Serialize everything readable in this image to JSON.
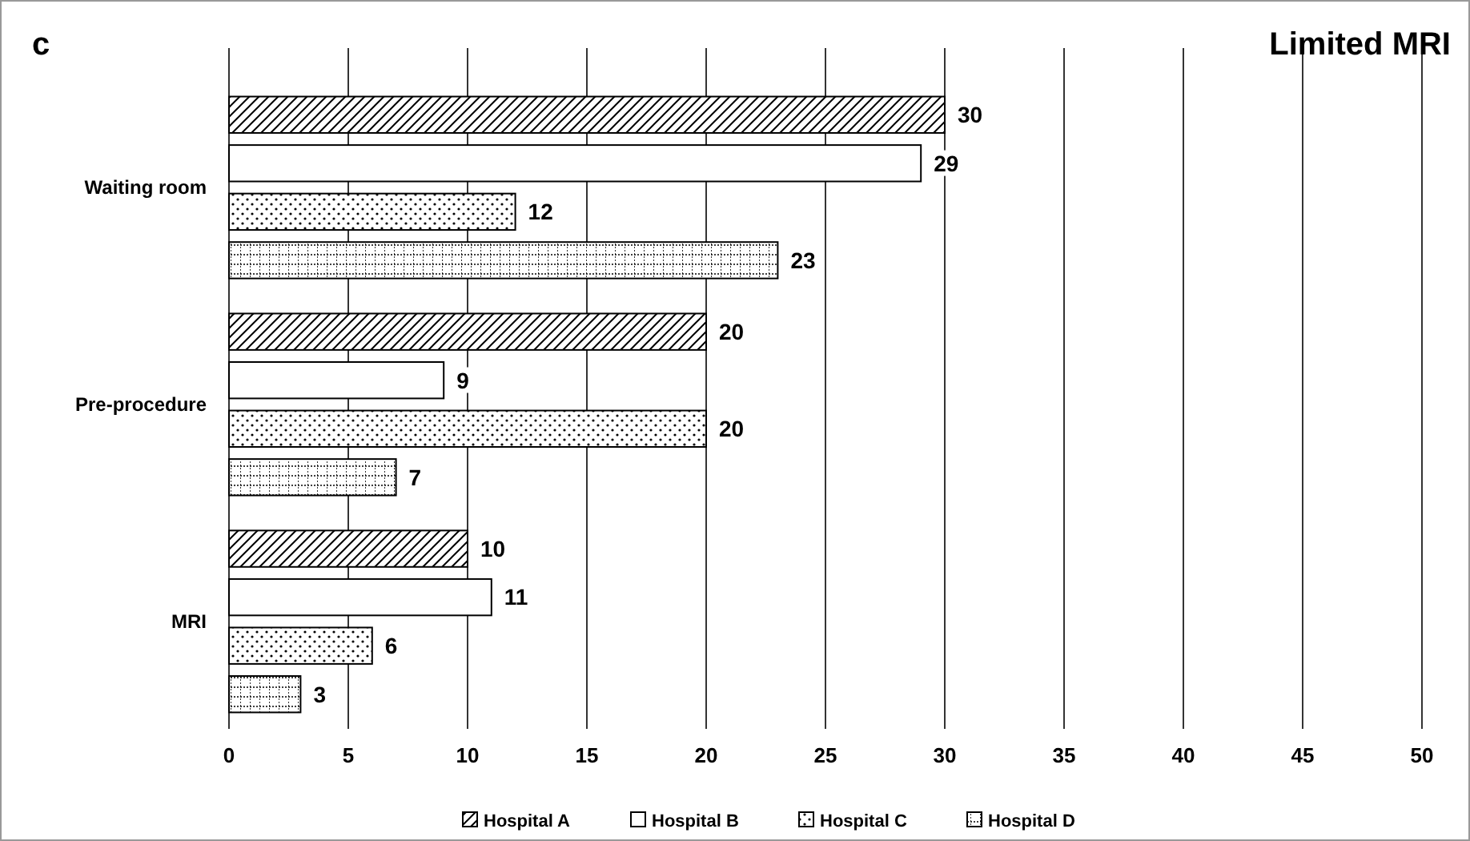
{
  "chart_data": {
    "type": "bar",
    "orientation": "horizontal",
    "title": "Limited MRI",
    "annotations": [
      "c"
    ],
    "categories": [
      "Waiting room",
      "Pre-procedure",
      "MRI"
    ],
    "series": [
      {
        "name": "Hospital A",
        "color": "#000000",
        "values": [
          30,
          20,
          10
        ]
      },
      {
        "name": "Hospital B",
        "color": "#000000",
        "values": [
          29,
          9,
          11
        ]
      },
      {
        "name": "Hospital C",
        "color": "#000000",
        "values": [
          12,
          20,
          6
        ]
      },
      {
        "name": "Hospital D",
        "color": "#000000",
        "values": [
          23,
          7,
          3
        ]
      }
    ],
    "xlim": [
      0,
      50
    ],
    "xticks": [
      0,
      5,
      10,
      15,
      20,
      25,
      30,
      35,
      40,
      45,
      50
    ],
    "grid": "x",
    "legend": "bottom",
    "data_labels": true
  }
}
